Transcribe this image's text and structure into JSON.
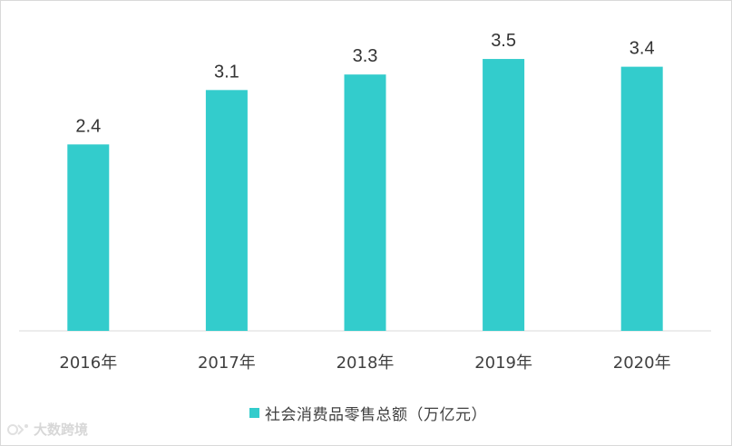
{
  "chart_data": {
    "type": "bar",
    "categories": [
      "2016年",
      "2017年",
      "2018年",
      "2019年",
      "2020年"
    ],
    "series": [
      {
        "name": "社会消费品零售总额（万亿元）",
        "values": [
          2.4,
          3.1,
          3.3,
          3.5,
          3.4
        ],
        "color": "#33cccc"
      }
    ],
    "data_labels": [
      "2.4",
      "3.1",
      "3.3",
      "3.5",
      "3.4"
    ],
    "ylim": [
      0,
      3.7
    ],
    "grid": false,
    "legend_position": "bottom"
  },
  "legend": {
    "label": "社会消费品零售总额（万亿元）"
  },
  "watermark": {
    "text": "大数跨境"
  }
}
